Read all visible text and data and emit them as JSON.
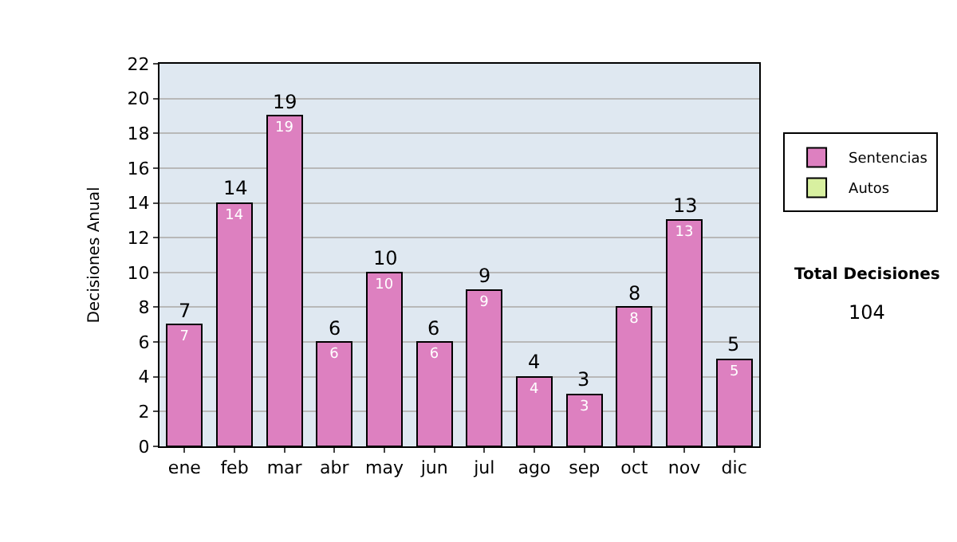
{
  "chart_data": {
    "type": "bar",
    "ylabel": "Decisiones Anual",
    "categories": [
      "ene",
      "feb",
      "mar",
      "abr",
      "may",
      "jun",
      "jul",
      "ago",
      "sep",
      "oct",
      "nov",
      "dic"
    ],
    "series": [
      {
        "name": "Sentencias",
        "color": "#dd80c0",
        "values": [
          7,
          14,
          19,
          6,
          10,
          6,
          9,
          4,
          3,
          8,
          13,
          5
        ],
        "value_labels": [
          "7",
          "14",
          "19",
          "6",
          "10",
          "6",
          "9",
          "4",
          "3",
          "8",
          "13",
          "5"
        ]
      },
      {
        "name": "Autos",
        "color": "#d8f0a0",
        "values": [
          null,
          null,
          null,
          null,
          null,
          null,
          null,
          null,
          null,
          null,
          null,
          null
        ]
      }
    ],
    "stacked": true,
    "totals": [
      "7",
      "14",
      "19",
      "6",
      "10",
      "6",
      "9",
      "4",
      "3",
      "8",
      "13",
      "5"
    ],
    "ylim": [
      0,
      22
    ],
    "yticks": [
      0,
      2,
      4,
      6,
      8,
      10,
      12,
      14,
      16,
      18,
      20,
      22
    ],
    "grid": "y",
    "legend": "right",
    "annotations": [
      "Total Decisiones",
      "104"
    ]
  }
}
